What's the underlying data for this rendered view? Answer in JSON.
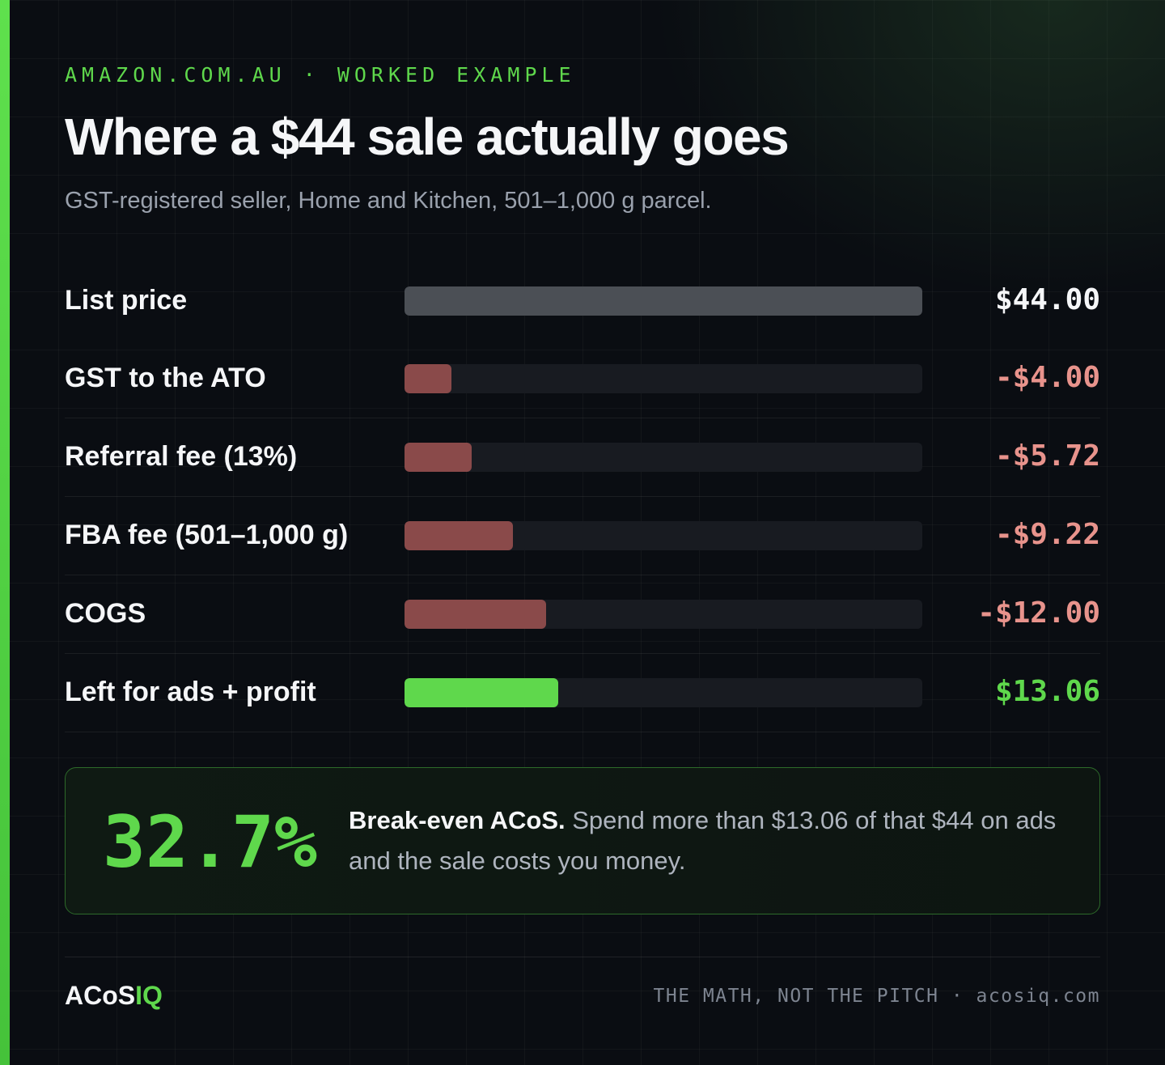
{
  "header": {
    "eyebrow": "AMAZON.COM.AU · WORKED EXAMPLE",
    "title": "Where a $44 sale actually goes",
    "subtitle": "GST-registered seller, Home and Kitchen, 501–1,000 g parcel."
  },
  "chart_data": {
    "type": "bar",
    "orientation": "horizontal",
    "xlim": [
      0,
      44
    ],
    "categories": [
      "List price",
      "GST to the ATO",
      "Referral fee (13%)",
      "FBA fee (501–1,000 g)",
      "COGS",
      "Left for ads + profit"
    ],
    "values": [
      44.0,
      4.0,
      5.72,
      9.22,
      12.0,
      13.06
    ],
    "value_labels": [
      "$44.00",
      "-$4.00",
      "-$5.72",
      "-$9.22",
      "-$12.00",
      "$13.06"
    ],
    "kinds": [
      "total",
      "deduction",
      "deduction",
      "deduction",
      "deduction",
      "remainder"
    ]
  },
  "colors": {
    "total_bar": "#4b4f55",
    "deduction_bar": "#8a4a4a",
    "remainder_bar": "#5fd84c",
    "total_text": "#f5f6f8",
    "deduction_text": "#e8938c",
    "remainder_text": "#5fd84c",
    "accent": "#5fd84c"
  },
  "callout": {
    "value": "32.7%",
    "bold_text": "Break-even ACoS.",
    "text": " Spend more than $13.06 of that $44 on ads and the sale costs you money."
  },
  "footer": {
    "logo_main": "ACoS",
    "logo_accent": "IQ",
    "tagline": "THE MATH, NOT THE PITCH · acosiq.com"
  }
}
